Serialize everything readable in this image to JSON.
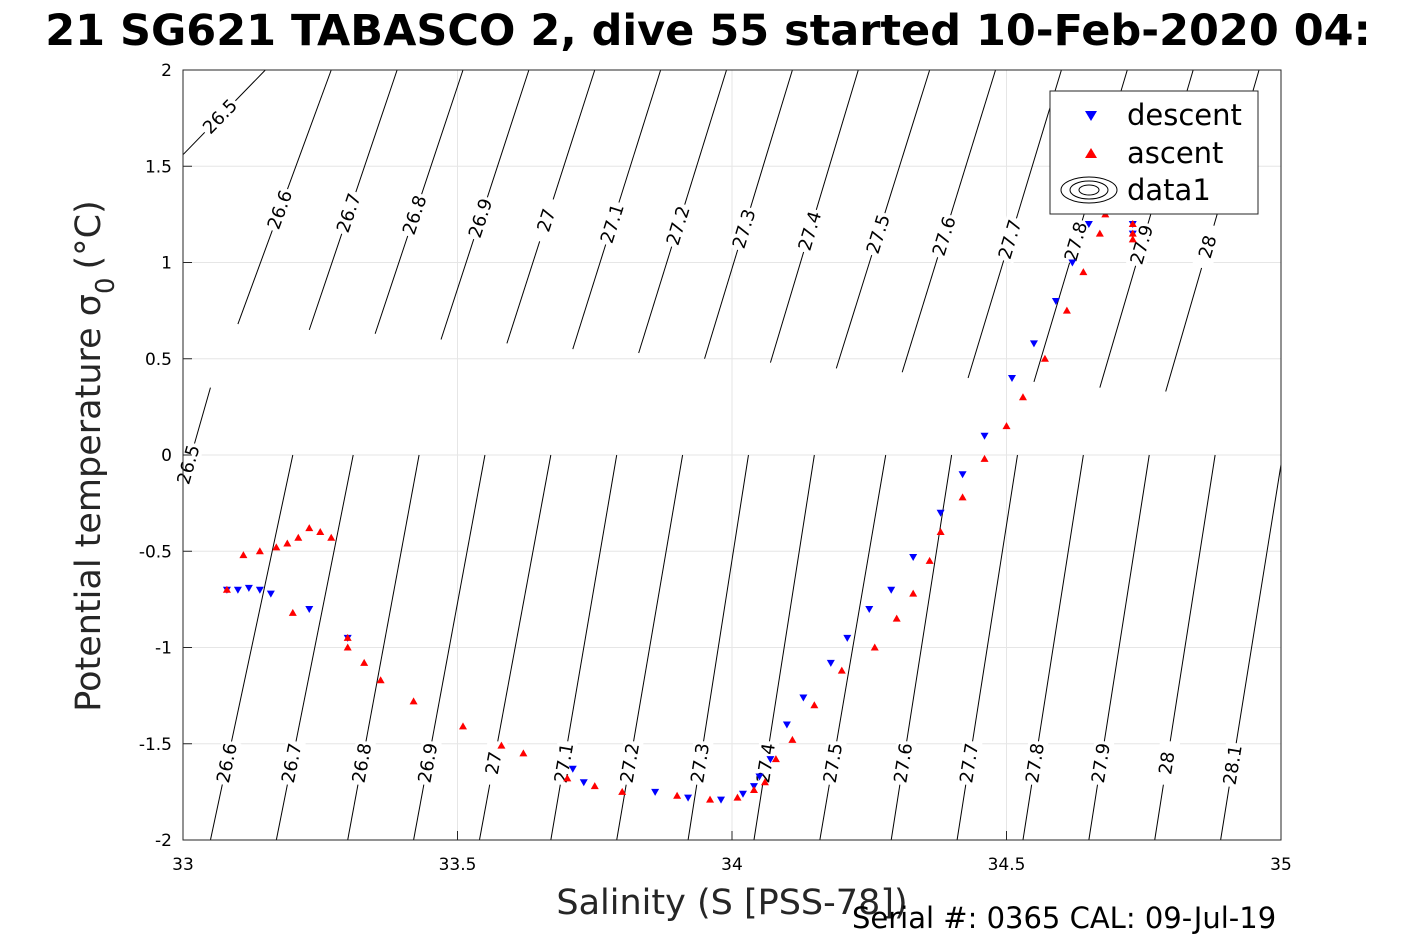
{
  "chart_data": {
    "type": "scatter",
    "title": "21 SG621 TABASCO 2, dive 55 started 10-Feb-2020 04:",
    "xlabel": "Salinity (S [PSS-78])",
    "ylabel": "Potential temperature σ",
    "ylabel_sub": "0",
    "ylabel_unit": "(°C)",
    "xlim": [
      33,
      35
    ],
    "ylim": [
      -2,
      2
    ],
    "xticks": [
      {
        "v": 33,
        "label": "33"
      },
      {
        "v": 33.5,
        "label": "33.5"
      },
      {
        "v": 34,
        "label": "34"
      },
      {
        "v": 34.5,
        "label": "34.5"
      },
      {
        "v": 35,
        "label": "35"
      }
    ],
    "yticks": [
      {
        "v": -2,
        "label": "-2"
      },
      {
        "v": -1.5,
        "label": "-1.5"
      },
      {
        "v": -1,
        "label": "-1"
      },
      {
        "v": -0.5,
        "label": "-0.5"
      },
      {
        "v": 0,
        "label": "0"
      },
      {
        "v": 0.5,
        "label": "0.5"
      },
      {
        "v": 1,
        "label": "1"
      },
      {
        "v": 1.5,
        "label": "1.5"
      },
      {
        "v": 2,
        "label": "2"
      }
    ],
    "grid": true,
    "legend_position": "top-right",
    "legend": [
      "descent",
      "ascent",
      "data1"
    ],
    "footer": "Serial #: 0365  CAL: 09-Jul-19",
    "series": [
      {
        "name": "descent",
        "marker": "triangle-down",
        "color": "#0000ff",
        "points": [
          [
            33.08,
            -0.7
          ],
          [
            33.1,
            -0.7
          ],
          [
            33.12,
            -0.69
          ],
          [
            33.14,
            -0.7
          ],
          [
            33.16,
            -0.72
          ],
          [
            33.23,
            -0.8
          ],
          [
            33.3,
            -0.95
          ],
          [
            33.71,
            -1.63
          ],
          [
            33.73,
            -1.7
          ],
          [
            33.86,
            -1.75
          ],
          [
            33.92,
            -1.78
          ],
          [
            33.98,
            -1.79
          ],
          [
            34.02,
            -1.76
          ],
          [
            34.04,
            -1.72
          ],
          [
            34.05,
            -1.67
          ],
          [
            34.07,
            -1.58
          ],
          [
            34.1,
            -1.4
          ],
          [
            34.13,
            -1.26
          ],
          [
            34.18,
            -1.08
          ],
          [
            34.21,
            -0.95
          ],
          [
            34.25,
            -0.8
          ],
          [
            34.29,
            -0.7
          ],
          [
            34.33,
            -0.53
          ],
          [
            34.38,
            -0.3
          ],
          [
            34.42,
            -0.1
          ],
          [
            34.46,
            0.1
          ],
          [
            34.51,
            0.4
          ],
          [
            34.55,
            0.58
          ],
          [
            34.59,
            0.8
          ],
          [
            34.62,
            1.0
          ],
          [
            34.65,
            1.2
          ],
          [
            34.67,
            1.35
          ],
          [
            34.73,
            1.2
          ],
          [
            34.73,
            1.15
          ]
        ]
      },
      {
        "name": "ascent",
        "marker": "triangle-up",
        "color": "#ff0000",
        "points": [
          [
            33.08,
            -0.7
          ],
          [
            33.11,
            -0.52
          ],
          [
            33.14,
            -0.5
          ],
          [
            33.17,
            -0.48
          ],
          [
            33.19,
            -0.46
          ],
          [
            33.21,
            -0.43
          ],
          [
            33.23,
            -0.38
          ],
          [
            33.25,
            -0.4
          ],
          [
            33.27,
            -0.43
          ],
          [
            33.2,
            -0.82
          ],
          [
            33.3,
            -0.95
          ],
          [
            33.3,
            -1.0
          ],
          [
            33.33,
            -1.08
          ],
          [
            33.36,
            -1.17
          ],
          [
            33.42,
            -1.28
          ],
          [
            33.51,
            -1.41
          ],
          [
            33.58,
            -1.51
          ],
          [
            33.62,
            -1.55
          ],
          [
            33.7,
            -1.68
          ],
          [
            33.75,
            -1.72
          ],
          [
            33.8,
            -1.75
          ],
          [
            33.9,
            -1.77
          ],
          [
            33.96,
            -1.79
          ],
          [
            34.01,
            -1.78
          ],
          [
            34.04,
            -1.74
          ],
          [
            34.06,
            -1.7
          ],
          [
            34.08,
            -1.58
          ],
          [
            34.11,
            -1.48
          ],
          [
            34.15,
            -1.3
          ],
          [
            34.2,
            -1.12
          ],
          [
            34.26,
            -1.0
          ],
          [
            34.3,
            -0.85
          ],
          [
            34.33,
            -0.72
          ],
          [
            34.36,
            -0.55
          ],
          [
            34.38,
            -0.4
          ],
          [
            34.42,
            -0.22
          ],
          [
            34.46,
            -0.02
          ],
          [
            34.5,
            0.15
          ],
          [
            34.53,
            0.3
          ],
          [
            34.57,
            0.5
          ],
          [
            34.61,
            0.75
          ],
          [
            34.64,
            0.95
          ],
          [
            34.67,
            1.15
          ],
          [
            34.68,
            1.25
          ],
          [
            34.73,
            1.2
          ],
          [
            34.73,
            1.15
          ],
          [
            34.73,
            1.12
          ]
        ]
      }
    ],
    "contours": [
      {
        "label": "26.5",
        "points": [
          [
            33.0,
            1.56
          ],
          [
            33.15,
            2.0
          ]
        ]
      },
      {
        "label": "26.6",
        "points": [
          [
            33.1,
            0.68
          ],
          [
            33.27,
            2.0
          ]
        ]
      },
      {
        "label": "26.7",
        "points": [
          [
            33.23,
            0.65
          ],
          [
            33.39,
            2.0
          ]
        ]
      },
      {
        "label": "26.8",
        "points": [
          [
            33.35,
            0.63
          ],
          [
            33.51,
            2.0
          ]
        ]
      },
      {
        "label": "26.9",
        "points": [
          [
            33.47,
            0.6
          ],
          [
            33.63,
            2.0
          ]
        ]
      },
      {
        "label": "27",
        "points": [
          [
            33.59,
            0.58
          ],
          [
            33.75,
            2.0
          ]
        ]
      },
      {
        "label": "27.1",
        "points": [
          [
            33.71,
            0.55
          ],
          [
            33.87,
            2.0
          ]
        ]
      },
      {
        "label": "27.2",
        "points": [
          [
            33.83,
            0.53
          ],
          [
            33.99,
            2.0
          ]
        ]
      },
      {
        "label": "27.3",
        "points": [
          [
            33.95,
            0.5
          ],
          [
            34.11,
            2.0
          ]
        ]
      },
      {
        "label": "27.4",
        "points": [
          [
            34.07,
            0.48
          ],
          [
            34.23,
            2.0
          ]
        ]
      },
      {
        "label": "27.5",
        "points": [
          [
            34.19,
            0.45
          ],
          [
            34.36,
            2.0
          ]
        ]
      },
      {
        "label": "27.6",
        "points": [
          [
            34.31,
            0.43
          ],
          [
            34.48,
            2.0
          ]
        ]
      },
      {
        "label": "27.7",
        "points": [
          [
            34.43,
            0.4
          ],
          [
            34.6,
            2.0
          ]
        ]
      },
      {
        "label": "27.8",
        "points": [
          [
            34.55,
            0.38
          ],
          [
            34.72,
            2.0
          ]
        ]
      },
      {
        "label": "27.9",
        "points": [
          [
            34.67,
            0.35
          ],
          [
            34.84,
            2.0
          ]
        ]
      },
      {
        "label": "28",
        "points": [
          [
            34.79,
            0.33
          ],
          [
            34.96,
            2.0
          ]
        ]
      }
    ],
    "contours_low": [
      {
        "label": "26.5",
        "points": [
          [
            33.0,
            -0.15
          ],
          [
            33.05,
            0.35
          ]
        ]
      },
      {
        "label": "26.6",
        "points": [
          [
            33.05,
            -2.0
          ],
          [
            33.2,
            0.0
          ]
        ]
      },
      {
        "label": "26.7",
        "points": [
          [
            33.17,
            -2.0
          ],
          [
            33.31,
            0.0
          ]
        ]
      },
      {
        "label": "26.8",
        "points": [
          [
            33.3,
            -2.0
          ],
          [
            33.43,
            0.0
          ]
        ]
      },
      {
        "label": "26.9",
        "points": [
          [
            33.42,
            -2.0
          ],
          [
            33.55,
            0.0
          ]
        ]
      },
      {
        "label": "27",
        "points": [
          [
            33.54,
            -2.0
          ],
          [
            33.67,
            0.0
          ]
        ]
      },
      {
        "label": "27.1",
        "points": [
          [
            33.67,
            -2.0
          ],
          [
            33.79,
            0.0
          ]
        ]
      },
      {
        "label": "27.2",
        "points": [
          [
            33.79,
            -2.0
          ],
          [
            33.91,
            0.0
          ]
        ]
      },
      {
        "label": "27.3",
        "points": [
          [
            33.92,
            -2.0
          ],
          [
            34.03,
            0.0
          ]
        ]
      },
      {
        "label": "27.4",
        "points": [
          [
            34.04,
            -2.0
          ],
          [
            34.15,
            0.0
          ]
        ]
      },
      {
        "label": "27.5",
        "points": [
          [
            34.16,
            -2.0
          ],
          [
            34.28,
            0.0
          ]
        ]
      },
      {
        "label": "27.6",
        "points": [
          [
            34.29,
            -2.0
          ],
          [
            34.4,
            0.0
          ]
        ]
      },
      {
        "label": "27.7",
        "points": [
          [
            34.41,
            -2.0
          ],
          [
            34.52,
            0.0
          ]
        ]
      },
      {
        "label": "27.8",
        "points": [
          [
            34.53,
            -2.0
          ],
          [
            34.64,
            0.0
          ]
        ]
      },
      {
        "label": "27.9",
        "points": [
          [
            34.65,
            -2.0
          ],
          [
            34.76,
            0.0
          ]
        ]
      },
      {
        "label": "28",
        "points": [
          [
            34.77,
            -2.0
          ],
          [
            34.88,
            0.0
          ]
        ]
      },
      {
        "label": "28.1",
        "points": [
          [
            34.89,
            -2.0
          ],
          [
            35.0,
            -0.05
          ]
        ]
      }
    ]
  }
}
